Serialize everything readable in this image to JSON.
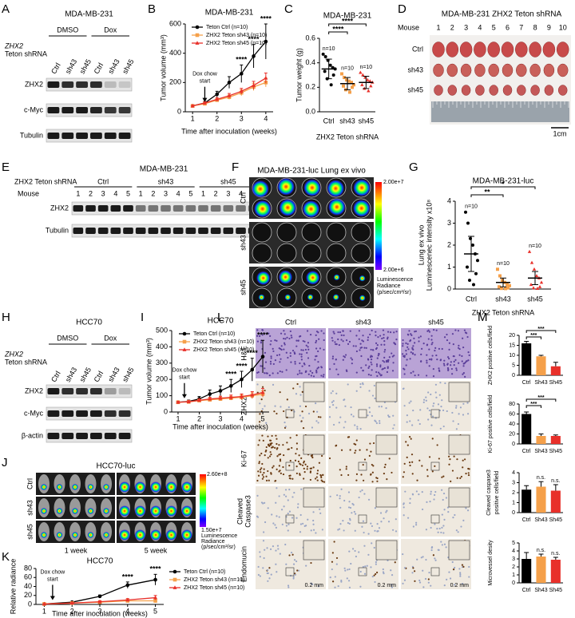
{
  "figure": {
    "letters": [
      "A",
      "B",
      "C",
      "D",
      "E",
      "F",
      "G",
      "H",
      "I",
      "J",
      "K",
      "L",
      "M"
    ],
    "blot_A": {
      "title": "MDA-MB-231",
      "groups": [
        "DMSO",
        "Dox"
      ],
      "row_label": [
        "ZHX2",
        "Teton shRNA"
      ],
      "lanes": [
        "Ctrl",
        "sh43",
        "sh45",
        "Ctrl",
        "sh43",
        "sh45"
      ],
      "bands": [
        "ZHX2",
        "c-Myc",
        "Tubulin"
      ]
    },
    "photo_D": {
      "title": "MDA-MB-231 ZHX2 Teton shRNA",
      "mouse_label": "Mouse",
      "mice": [
        "1",
        "2",
        "3",
        "4",
        "5",
        "6",
        "7",
        "8",
        "9",
        "10"
      ],
      "rows": [
        "Ctrl",
        "sh43",
        "sh45"
      ],
      "scale": "1cm"
    },
    "blot_E": {
      "title": "MDA-MB-231",
      "row_label": "ZHX2 Teton shRNA",
      "groups": [
        "Ctrl",
        "sh43",
        "sh45"
      ],
      "mouse_label": "Mouse",
      "lanes": [
        "1",
        "2",
        "3",
        "4",
        "5",
        "1",
        "2",
        "3",
        "4",
        "5",
        "1",
        "2",
        "3",
        "4",
        "5"
      ],
      "bands": [
        "ZHX2",
        "Tubulin"
      ]
    },
    "imaging_F": {
      "title": "MDA-MB-231-luc Lung ex vivo",
      "rows": [
        "Ctrl",
        "sh43",
        "sh45"
      ],
      "scale_max": "2.00e+7",
      "scale_min": "2.00e+6",
      "scale_label": [
        "Luminescence",
        "Radiance",
        "(p/sec/cm²/sr)"
      ]
    },
    "blot_H": {
      "title": "HCC70",
      "groups": [
        "DMSO",
        "Dox"
      ],
      "row_label": [
        "ZHX2",
        "Teton shRNA"
      ],
      "lanes": [
        "Ctrl",
        "sh43",
        "sh45",
        "Ctrl",
        "sh43",
        "sh45"
      ],
      "bands": [
        "ZHX2",
        "c-Myc",
        "β-actin"
      ]
    },
    "imaging_J": {
      "title": "HCC70-luc",
      "rows": [
        "Ctrl",
        "sh43",
        "sh45"
      ],
      "columns": [
        "1 week",
        "5 week"
      ],
      "scale_max": "2.60e+8",
      "scale_min": "1.50e+7",
      "scale_label": [
        "Luminescence",
        "Radiance",
        "(p/sec/cm²/sr)"
      ]
    },
    "ihc_L": {
      "columns": [
        "Ctrl",
        "sh43",
        "sh45"
      ],
      "rows": [
        [
          "H&E"
        ],
        [
          "ZHX2"
        ],
        [
          "Ki-67"
        ],
        [
          "Cleaved",
          "Caspase3"
        ],
        [
          "Endomucin"
        ]
      ],
      "scale": [
        "0.2 mm",
        "0.2 mm",
        "0.2 mm"
      ]
    }
  },
  "chart_data": [
    {
      "type": "line",
      "title": "MDA-MB-231",
      "xlabel": "Time after inoculation (weeks)",
      "ylabel": "Tumor volume (mm³)",
      "x": [
        1,
        1.5,
        2,
        2.5,
        3,
        3.5,
        4
      ],
      "xlim": [
        0.7,
        4.3
      ],
      "xticks": [
        1,
        2,
        3,
        4
      ],
      "ylim": [
        0,
        600
      ],
      "yticks": [
        0,
        200,
        400,
        600
      ],
      "legend": "upper left",
      "series": [
        {
          "name": "Teton Ctrl (n=10)",
          "color": "#000000",
          "marker": "circle",
          "values": [
            40,
            60,
            120,
            200,
            260,
            380,
            480
          ],
          "errors": [
            5,
            10,
            20,
            40,
            60,
            80,
            120
          ]
        },
        {
          "name": "ZHX2 Teton sh43 (n=10)",
          "color": "#f5a04a",
          "marker": "square",
          "values": [
            40,
            55,
            80,
            100,
            130,
            170,
            200
          ],
          "errors": [
            5,
            8,
            10,
            15,
            20,
            25,
            30
          ]
        },
        {
          "name": "ZHX2 Teton sh45 (n=10)",
          "color": "#e8302a",
          "marker": "triangle",
          "values": [
            40,
            60,
            85,
            110,
            140,
            180,
            230
          ],
          "errors": [
            5,
            8,
            12,
            15,
            20,
            28,
            35
          ]
        }
      ],
      "annotations": [
        {
          "x": 3,
          "text": "****"
        },
        {
          "x": 3.5,
          "text": "****"
        },
        {
          "x": 4,
          "text": "****"
        }
      ],
      "marker": {
        "x": 1.5,
        "lines": [
          "Dox chow",
          "start"
        ]
      }
    },
    {
      "type": "strip",
      "title": "MDA-MB-231",
      "xlabel": "ZHX2 Teton shRNA",
      "ylabel": "Tumor weight (g)",
      "categories": [
        "Ctrl",
        "sh43",
        "sh45"
      ],
      "ylim": [
        0,
        0.6
      ],
      "yticks": [
        {
          "value": 0,
          "label": "0.0"
        },
        0.2,
        0.4,
        0.6
      ],
      "colors": [
        "#000000",
        "#f5a04a",
        "#e8302a"
      ],
      "markers": [
        "circle",
        "square",
        "triangle"
      ],
      "points": [
        [
          0.47,
          0.45,
          0.42,
          0.38,
          0.36,
          0.35,
          0.33,
          0.3,
          0.27,
          0.22
        ],
        [
          0.31,
          0.28,
          0.26,
          0.25,
          0.24,
          0.22,
          0.21,
          0.2,
          0.18,
          0.16
        ],
        [
          0.32,
          0.3,
          0.28,
          0.26,
          0.25,
          0.24,
          0.22,
          0.21,
          0.19,
          0.17
        ]
      ],
      "means": [
        0.35,
        0.23,
        0.24
      ],
      "errors": [
        0.08,
        0.05,
        0.05
      ],
      "n_labels": [
        "n=10",
        "n=10",
        "n=10"
      ],
      "comparisons": [
        {
          "from": 0,
          "to": 1,
          "label": "****"
        },
        {
          "from": 0,
          "to": 2,
          "label": "****"
        }
      ]
    },
    {
      "type": "strip",
      "title": "MDA-MB-231-luc",
      "xlabel": "ZHX2 Teton shRNA",
      "ylabel": [
        "Lung ex vivo",
        "Luminescenec intensity x10⁸"
      ],
      "categories": [
        "Ctrl",
        "sh43",
        "sh45"
      ],
      "ylim": [
        0,
        4
      ],
      "yticks": [
        0,
        1,
        2,
        3,
        4
      ],
      "colors": [
        "#000000",
        "#f5a04a",
        "#e8302a"
      ],
      "markers": [
        "circle",
        "square",
        "triangle"
      ],
      "points": [
        [
          3.5,
          3,
          2.3,
          2,
          1.6,
          1.3,
          1,
          0.7,
          0.4,
          0.2
        ],
        [
          0.9,
          0.6,
          0.4,
          0.3,
          0.2,
          0.15,
          0.1,
          0.05,
          0.03,
          0.02
        ],
        [
          1.7,
          1.2,
          0.9,
          0.6,
          0.5,
          0.3,
          0.2,
          0.1,
          0.05,
          0.02
        ]
      ],
      "means": [
        1.6,
        0.3,
        0.5
      ],
      "errors": [
        0.8,
        0.2,
        0.3
      ],
      "n_labels": [
        "n=10",
        "n=10",
        "n=10"
      ],
      "comparisons": [
        {
          "from": 0,
          "to": 1,
          "label": "**"
        },
        {
          "from": 0,
          "to": 2,
          "label": "*"
        }
      ]
    },
    {
      "type": "line",
      "title": "HCC70",
      "xlabel": "Time after inoculation (weeks)",
      "ylabel": "Tumor volume (mm³)",
      "x": [
        1,
        1.5,
        2,
        2.5,
        3,
        3.5,
        4,
        4.5,
        5
      ],
      "xlim": [
        0.7,
        5.3
      ],
      "xticks": [
        1,
        2,
        3,
        4,
        5
      ],
      "ylim": [
        0,
        500
      ],
      "yticks": [
        0,
        100,
        200,
        300,
        400,
        500
      ],
      "legend": "upper left",
      "series": [
        {
          "name": "Teton Ctrl (n=10)",
          "color": "#000000",
          "marker": "circle",
          "values": [
            60,
            65,
            80,
            110,
            130,
            160,
            200,
            260,
            340
          ],
          "errors": [
            5,
            8,
            15,
            25,
            30,
            40,
            50,
            70,
            100
          ]
        },
        {
          "name": "ZHX2 Teton sh43 (n=10)",
          "color": "#f5a04a",
          "marker": "square",
          "values": [
            60,
            62,
            70,
            75,
            80,
            85,
            90,
            100,
            110
          ],
          "errors": [
            5,
            6,
            8,
            10,
            12,
            12,
            15,
            18,
            20
          ]
        },
        {
          "name": "ZHX2 Teton sh45 (n=10)",
          "color": "#e8302a",
          "marker": "triangle",
          "values": [
            60,
            63,
            72,
            80,
            85,
            90,
            95,
            105,
            120
          ],
          "errors": [
            5,
            6,
            8,
            10,
            12,
            14,
            16,
            20,
            25
          ]
        }
      ],
      "annotations": [
        {
          "x": 3.5,
          "text": "****"
        },
        {
          "x": 4,
          "text": "****"
        },
        {
          "x": 4.5,
          "text": "****"
        },
        {
          "x": 5,
          "text": "****"
        }
      ],
      "marker": {
        "x": 1.3,
        "lines": [
          "Dox chow",
          "start"
        ]
      }
    },
    {
      "type": "line",
      "title": "HCC70",
      "xlabel": "Time after inoculation (weeks)",
      "ylabel": "Relative radiance",
      "x": [
        1,
        2,
        3,
        4,
        5
      ],
      "xlim": [
        0.7,
        5.3
      ],
      "xticks": [
        1,
        2,
        3,
        4,
        5
      ],
      "ylim": [
        0,
        80
      ],
      "yticks": [
        0,
        20,
        40,
        60,
        80
      ],
      "legend": "outside right",
      "series": [
        {
          "name": "Teton Ctrl (n=10)",
          "color": "#000000",
          "marker": "circle",
          "values": [
            1,
            5,
            18,
            43,
            55
          ],
          "errors": [
            0.5,
            1,
            3,
            7,
            12
          ]
        },
        {
          "name": "ZHX2 Teton sh43 (n=10)",
          "color": "#f5a04a",
          "marker": "square",
          "values": [
            1,
            3,
            5,
            8,
            8
          ],
          "errors": [
            0.5,
            1,
            1.5,
            3,
            4
          ]
        },
        {
          "name": "ZHX2 Teton sh45 (n=10)",
          "color": "#e8302a",
          "marker": "triangle",
          "values": [
            1,
            3,
            6,
            10,
            15
          ],
          "errors": [
            0.5,
            1,
            2,
            3,
            5
          ]
        }
      ],
      "annotations": [
        {
          "x": 4,
          "text": "****"
        },
        {
          "x": 5,
          "text": "****"
        }
      ],
      "marker": {
        "x": 1.3,
        "lines": [
          "Dox chow",
          "start"
        ]
      }
    },
    {
      "type": "bar",
      "ylabel": "ZHX2 positive cells/field",
      "categories": [
        "Ctrl",
        "Sh43",
        "Sh45"
      ],
      "ylim": [
        0,
        20
      ],
      "yticks": [
        0,
        5,
        10,
        15,
        20
      ],
      "values": [
        16,
        9.5,
        4.5
      ],
      "errors": [
        1,
        0.5,
        2
      ],
      "colors": [
        "#000000",
        "#f5a04a",
        "#e8302a"
      ],
      "bracket": true,
      "comparisons": [
        {
          "from": 0,
          "to": 1,
          "label": "***"
        },
        {
          "from": 0,
          "to": 2,
          "label": "***"
        }
      ]
    },
    {
      "type": "bar",
      "ylabel": "Ki-67 positive cells/field",
      "categories": [
        "Ctrl",
        "Sh43",
        "Sh45"
      ],
      "ylim": [
        0,
        80
      ],
      "yticks": [
        0,
        20,
        40,
        60,
        80
      ],
      "values": [
        60,
        16,
        16
      ],
      "errors": [
        4,
        4,
        2
      ],
      "colors": [
        "#000000",
        "#f5a04a",
        "#e8302a"
      ],
      "bracket": true,
      "comparisons": [
        {
          "from": 0,
          "to": 1,
          "label": "***"
        },
        {
          "from": 0,
          "to": 2,
          "label": "***"
        }
      ]
    },
    {
      "type": "bar",
      "ylabel": [
        "Cleaved caspase3",
        "positive cells/field"
      ],
      "categories": [
        "Ctrl",
        "Sh43",
        "Sh45"
      ],
      "ylim": [
        0,
        4
      ],
      "yticks": [
        0,
        1,
        2,
        3,
        4
      ],
      "values": [
        2.3,
        2.6,
        2.2
      ],
      "errors": [
        0.4,
        0.5,
        0.6
      ],
      "colors": [
        "#000000",
        "#f5a04a",
        "#e8302a"
      ],
      "bracket": false,
      "comparisons": [
        {
          "from": 0,
          "to": 1,
          "label": "n.s."
        },
        {
          "from": 0,
          "to": 2,
          "label": "n.s."
        }
      ]
    },
    {
      "type": "bar",
      "ylabel": "Microvessel desity",
      "categories": [
        "Ctrl",
        "Sh43",
        "Sh45"
      ],
      "ylim": [
        0,
        5
      ],
      "yticks": [
        0,
        1,
        2,
        3,
        4,
        5
      ],
      "values": [
        3,
        3.3,
        2.9
      ],
      "errors": [
        0.8,
        0.3,
        0.3
      ],
      "colors": [
        "#000000",
        "#f5a04a",
        "#e8302a"
      ],
      "bracket": false,
      "comparisons": [
        {
          "from": 0,
          "to": 1,
          "label": "n.s."
        },
        {
          "from": 0,
          "to": 2,
          "label": "n.s."
        }
      ]
    }
  ]
}
